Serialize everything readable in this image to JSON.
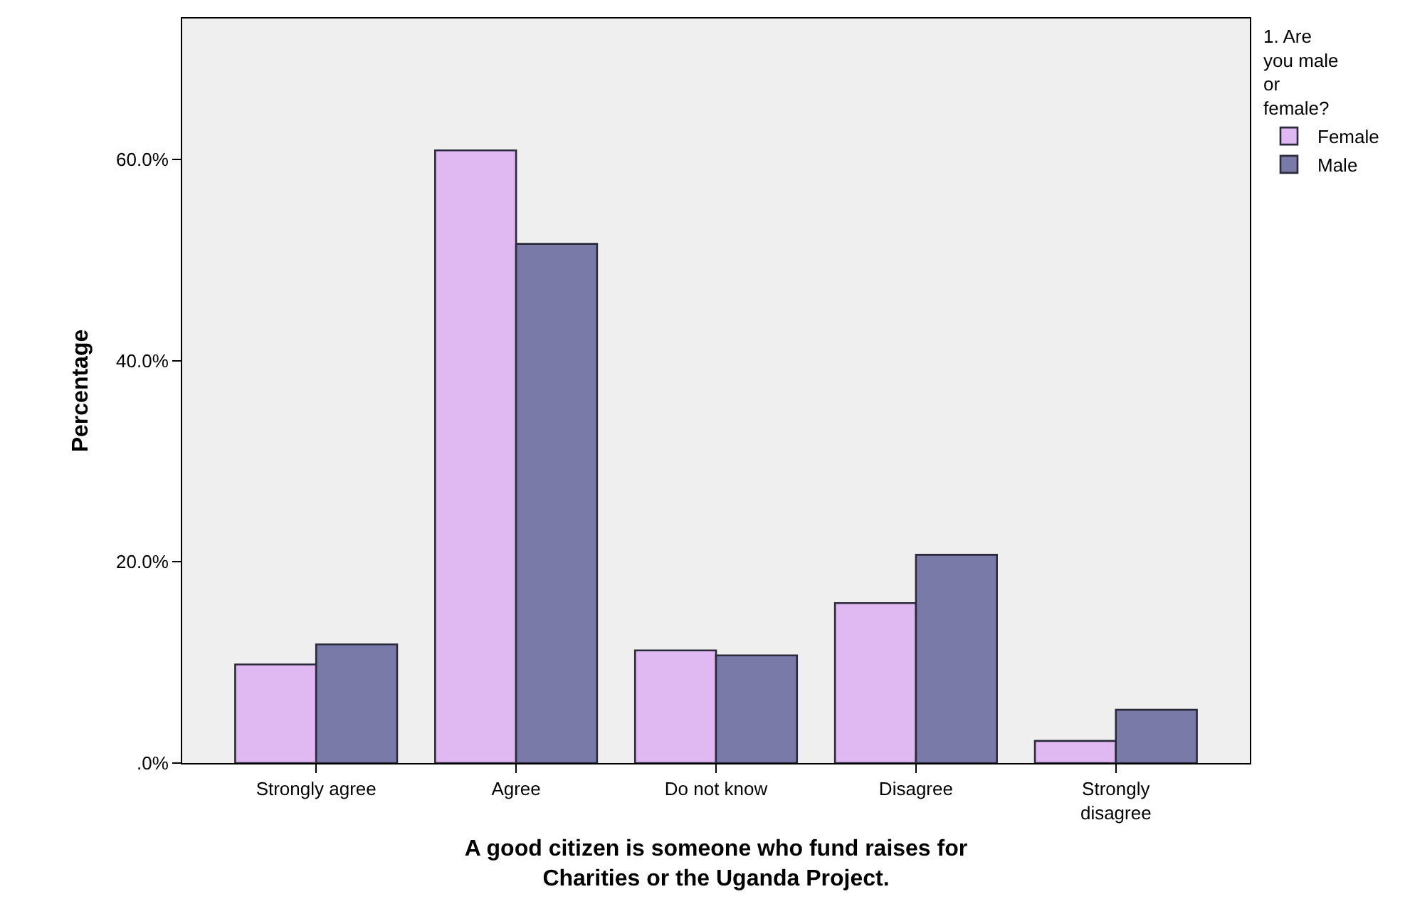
{
  "chart_data": {
    "type": "bar",
    "xlabel": "A good citizen is someone who fund raises for Charities or the Uganda Project.",
    "ylabel": "Percentage",
    "legend_title": "1. Are you male or female?",
    "categories": [
      "Strongly agree",
      "Agree",
      "Do not know",
      "Disagree",
      "Strongly disagree"
    ],
    "series": [
      {
        "name": "Female",
        "color": "#e0b8f2",
        "values": [
          9.8,
          60.9,
          11.2,
          15.9,
          2.2
        ]
      },
      {
        "name": "Male",
        "color": "#7a7aa8",
        "values": [
          11.8,
          51.6,
          10.7,
          20.7,
          5.3
        ]
      }
    ],
    "ylim": [
      0,
      74
    ],
    "yticks": [
      {
        "value": 0,
        "label": ".0%"
      },
      {
        "value": 20,
        "label": "20.0%"
      },
      {
        "value": 40,
        "label": "40.0%"
      },
      {
        "value": 60,
        "label": "60.0%"
      }
    ],
    "grid": false,
    "legend": "top right"
  }
}
